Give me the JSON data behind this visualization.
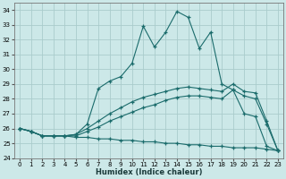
{
  "xlabel": "Humidex (Indice chaleur)",
  "xlim": [
    -0.5,
    23.5
  ],
  "ylim": [
    24,
    34.5
  ],
  "yticks": [
    24,
    25,
    26,
    27,
    28,
    29,
    30,
    31,
    32,
    33,
    34
  ],
  "xticks": [
    0,
    1,
    2,
    3,
    4,
    5,
    6,
    7,
    8,
    9,
    10,
    11,
    12,
    13,
    14,
    15,
    16,
    17,
    18,
    19,
    20,
    21,
    22,
    23
  ],
  "background_color": "#cce8e8",
  "grid_color": "#aacccc",
  "line_color": "#1a6b6b",
  "lines": [
    {
      "x": [
        0,
        1,
        2,
        3,
        4,
        5,
        6,
        7,
        8,
        9,
        10,
        11,
        12,
        13,
        14,
        15,
        16,
        17,
        18,
        19,
        20,
        21,
        22,
        23
      ],
      "y": [
        26.0,
        25.8,
        25.5,
        25.5,
        25.5,
        25.6,
        26.3,
        28.7,
        29.2,
        29.5,
        30.4,
        32.9,
        31.5,
        32.5,
        33.9,
        33.5,
        31.4,
        32.5,
        29.0,
        28.6,
        27.0,
        26.8,
        24.8,
        24.5
      ]
    },
    {
      "x": [
        0,
        1,
        2,
        3,
        4,
        5,
        6,
        7,
        8,
        9,
        10,
        11,
        12,
        13,
        14,
        15,
        16,
        17,
        18,
        19,
        20,
        21,
        22,
        23
      ],
      "y": [
        26.0,
        25.8,
        25.5,
        25.5,
        25.5,
        25.6,
        26.0,
        26.5,
        27.0,
        27.4,
        27.8,
        28.1,
        28.3,
        28.5,
        28.7,
        28.8,
        28.7,
        28.6,
        28.5,
        29.0,
        28.5,
        28.4,
        26.5,
        24.5
      ]
    },
    {
      "x": [
        0,
        1,
        2,
        3,
        4,
        5,
        6,
        7,
        8,
        9,
        10,
        11,
        12,
        13,
        14,
        15,
        16,
        17,
        18,
        19,
        20,
        21,
        22,
        23
      ],
      "y": [
        26.0,
        25.8,
        25.5,
        25.5,
        25.5,
        25.5,
        25.8,
        26.1,
        26.5,
        26.8,
        27.1,
        27.4,
        27.6,
        27.9,
        28.1,
        28.2,
        28.2,
        28.1,
        28.0,
        28.6,
        28.2,
        28.0,
        26.3,
        24.5
      ]
    },
    {
      "x": [
        0,
        1,
        2,
        3,
        4,
        5,
        6,
        7,
        8,
        9,
        10,
        11,
        12,
        13,
        14,
        15,
        16,
        17,
        18,
        19,
        20,
        21,
        22,
        23
      ],
      "y": [
        26.0,
        25.8,
        25.5,
        25.5,
        25.5,
        25.4,
        25.4,
        25.3,
        25.3,
        25.2,
        25.2,
        25.1,
        25.1,
        25.0,
        25.0,
        24.9,
        24.9,
        24.8,
        24.8,
        24.7,
        24.7,
        24.7,
        24.6,
        24.5
      ]
    }
  ]
}
